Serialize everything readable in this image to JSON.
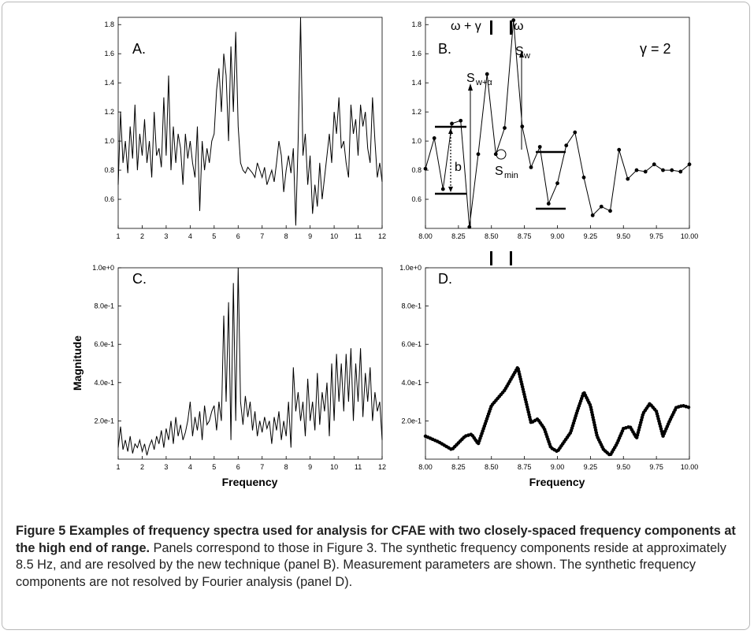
{
  "caption": {
    "label": "Figure 5",
    "title": "Examples of frequency spectra used for analysis for CFAE with two closely-spaced frequency components at the high end of range.",
    "body": "Panels correspond to those in Figure 3. The synthetic frequency components reside at approximately 8.5 Hz, and are resolved by the new technique (panel B). Measurement parameters are shown. The synthetic frequency components are not resolved by Fourier analysis (panel D)."
  },
  "chart_data": [
    {
      "panel": "A.",
      "type": "line",
      "xlim": [
        1,
        12
      ],
      "ylim": [
        0.4,
        1.85
      ],
      "xticks": [
        "1",
        "2",
        "3",
        "4",
        "5",
        "6",
        "7",
        "8",
        "9",
        "10",
        "11",
        "12"
      ],
      "yticks": [
        "0.6",
        "0.8",
        "1.0",
        "1.2",
        "1.4",
        "1.6",
        "1.8"
      ],
      "xlabel": "",
      "ylabel": "",
      "series": [
        {
          "x": [
            1.0,
            1.1,
            1.2,
            1.3,
            1.4,
            1.5,
            1.6,
            1.7,
            1.8,
            1.9,
            2.0,
            2.1,
            2.2,
            2.3,
            2.4,
            2.5,
            2.6,
            2.7,
            2.8,
            2.9,
            3.0,
            3.1,
            3.2,
            3.3,
            3.4,
            3.5,
            3.6,
            3.7,
            3.8,
            3.9,
            4.0,
            4.1,
            4.2,
            4.3,
            4.4,
            4.5,
            4.6,
            4.7,
            4.8,
            4.9,
            5.0,
            5.1,
            5.2,
            5.3,
            5.4,
            5.5,
            5.6,
            5.7,
            5.8,
            5.9,
            6.0,
            6.1,
            6.2,
            6.3,
            6.4,
            6.5,
            6.6,
            6.7,
            6.8,
            6.9,
            7.0,
            7.1,
            7.2,
            7.3,
            7.4,
            7.5,
            7.6,
            7.7,
            7.8,
            7.9,
            8.0,
            8.1,
            8.2,
            8.3,
            8.4,
            8.5,
            8.6,
            8.7,
            8.8,
            8.9,
            9.0,
            9.1,
            9.2,
            9.3,
            9.4,
            9.5,
            9.6,
            9.7,
            9.8,
            9.9,
            10.0,
            10.1,
            10.2,
            10.3,
            10.4,
            10.5,
            10.6,
            10.7,
            10.8,
            10.9,
            11.0,
            11.1,
            11.2,
            11.3,
            11.4,
            11.5,
            11.6,
            11.7,
            11.8,
            11.9,
            12.0
          ],
          "values": [
            0.7,
            1.2,
            0.85,
            1.0,
            0.78,
            1.1,
            0.88,
            1.25,
            0.8,
            1.05,
            0.9,
            1.15,
            0.85,
            1.0,
            0.75,
            1.2,
            0.9,
            0.95,
            0.82,
            1.3,
            0.9,
            1.45,
            0.8,
            1.1,
            0.85,
            1.05,
            0.95,
            0.7,
            1.05,
            0.88,
            1.0,
            0.85,
            0.75,
            1.1,
            0.52,
            1.0,
            0.8,
            0.95,
            0.85,
            1.0,
            1.05,
            1.35,
            1.5,
            1.2,
            1.6,
            1.45,
            1.0,
            1.65,
            1.2,
            1.75,
            1.1,
            0.85,
            0.8,
            0.78,
            0.82,
            0.8,
            0.78,
            0.75,
            0.85,
            0.8,
            0.75,
            0.82,
            0.7,
            0.75,
            0.8,
            0.72,
            0.85,
            1.0,
            0.9,
            0.65,
            0.8,
            0.9,
            0.78,
            0.95,
            0.42,
            1.0,
            1.85,
            0.9,
            1.05,
            0.7,
            0.9,
            0.5,
            0.7,
            0.55,
            0.85,
            0.6,
            0.75,
            0.9,
            1.05,
            0.85,
            1.2,
            1.05,
            1.3,
            0.95,
            1.0,
            0.85,
            0.75,
            1.25,
            1.05,
            1.15,
            0.9,
            1.25,
            1.1,
            1.2,
            0.95,
            0.85,
            1.3,
            1.0,
            0.75,
            0.85,
            0.72
          ]
        }
      ]
    },
    {
      "panel": "B.",
      "type": "line",
      "xlim": [
        8,
        10
      ],
      "ylim": [
        0.4,
        1.85
      ],
      "xticks": [
        "8.00",
        "8.25",
        "8.50",
        "8.75",
        "9.00",
        "9.25",
        "9.50",
        "9.75",
        "10.00"
      ],
      "yticks": [
        "0.6",
        "0.8",
        "1.0",
        "1.2",
        "1.4",
        "1.6",
        "1.8"
      ],
      "xlabel": "",
      "ylabel": "",
      "series": [
        {
          "x": [
            8.0,
            8.067,
            8.133,
            8.2,
            8.267,
            8.333,
            8.4,
            8.467,
            8.533,
            8.6,
            8.667,
            8.733,
            8.8,
            8.867,
            8.933,
            9.0,
            9.067,
            9.133,
            9.2,
            9.267,
            9.333,
            9.4,
            9.467,
            9.533,
            9.6,
            9.667,
            9.733,
            9.8,
            9.867,
            9.933,
            10.0
          ],
          "values": [
            0.81,
            1.02,
            0.67,
            1.12,
            1.14,
            0.41,
            0.91,
            1.46,
            0.91,
            1.09,
            1.83,
            1.1,
            0.82,
            0.96,
            0.57,
            0.71,
            0.97,
            1.06,
            0.75,
            0.49,
            0.55,
            0.52,
            0.94,
            0.74,
            0.8,
            0.79,
            0.84,
            0.8,
            0.8,
            0.79,
            0.84
          ]
        }
      ],
      "annotations": [
        "ω + γ",
        "ω",
        "γ = 2",
        "S",
        "w+α",
        "S",
        "w",
        "b",
        "S",
        "min"
      ]
    },
    {
      "panel": "C.",
      "type": "line",
      "xlim": [
        1,
        12
      ],
      "ylim": [
        0,
        1.0
      ],
      "xticks": [
        "1",
        "2",
        "3",
        "4",
        "5",
        "6",
        "7",
        "8",
        "9",
        "10",
        "11",
        "12"
      ],
      "yticks": [
        "2.0e-1",
        "4.0e-1",
        "6.0e-1",
        "8.0e-1",
        "1.0e+0"
      ],
      "xlabel": "Frequency",
      "ylabel": "Magnitude",
      "series": [
        {
          "x": [
            1.0,
            1.1,
            1.2,
            1.3,
            1.4,
            1.5,
            1.6,
            1.7,
            1.8,
            1.9,
            2.0,
            2.1,
            2.2,
            2.3,
            2.4,
            2.5,
            2.6,
            2.7,
            2.8,
            2.9,
            3.0,
            3.1,
            3.2,
            3.3,
            3.4,
            3.5,
            3.6,
            3.7,
            3.8,
            3.9,
            4.0,
            4.1,
            4.2,
            4.3,
            4.4,
            4.5,
            4.6,
            4.7,
            4.8,
            4.9,
            5.0,
            5.1,
            5.2,
            5.3,
            5.4,
            5.5,
            5.6,
            5.7,
            5.8,
            5.9,
            6.0,
            6.1,
            6.2,
            6.3,
            6.4,
            6.5,
            6.6,
            6.7,
            6.8,
            6.9,
            7.0,
            7.1,
            7.2,
            7.3,
            7.4,
            7.5,
            7.6,
            7.7,
            7.8,
            7.9,
            8.0,
            8.1,
            8.2,
            8.3,
            8.4,
            8.5,
            8.6,
            8.7,
            8.8,
            8.9,
            9.0,
            9.1,
            9.2,
            9.3,
            9.4,
            9.5,
            9.6,
            9.7,
            9.8,
            9.9,
            10.0,
            10.1,
            10.2,
            10.3,
            10.4,
            10.5,
            10.6,
            10.7,
            10.8,
            10.9,
            11.0,
            11.1,
            11.2,
            11.3,
            11.4,
            11.5,
            11.6,
            11.7,
            11.8,
            11.9,
            12.0
          ],
          "values": [
            0.06,
            0.17,
            0.05,
            0.1,
            0.04,
            0.12,
            0.03,
            0.08,
            0.06,
            0.1,
            0.04,
            0.08,
            0.02,
            0.07,
            0.1,
            0.05,
            0.12,
            0.08,
            0.15,
            0.06,
            0.16,
            0.1,
            0.2,
            0.08,
            0.22,
            0.12,
            0.18,
            0.1,
            0.14,
            0.2,
            0.3,
            0.12,
            0.22,
            0.15,
            0.25,
            0.1,
            0.28,
            0.18,
            0.2,
            0.25,
            0.28,
            0.15,
            0.3,
            0.2,
            0.75,
            0.3,
            0.82,
            0.1,
            0.92,
            0.2,
            1.0,
            0.3,
            0.18,
            0.33,
            0.22,
            0.3,
            0.15,
            0.25,
            0.12,
            0.2,
            0.14,
            0.22,
            0.16,
            0.2,
            0.08,
            0.22,
            0.15,
            0.25,
            0.1,
            0.2,
            0.12,
            0.3,
            0.06,
            0.48,
            0.25,
            0.35,
            0.2,
            0.3,
            0.12,
            0.42,
            0.2,
            0.3,
            0.15,
            0.45,
            0.18,
            0.35,
            0.25,
            0.4,
            0.12,
            0.5,
            0.2,
            0.55,
            0.3,
            0.5,
            0.25,
            0.55,
            0.3,
            0.58,
            0.2,
            0.5,
            0.3,
            0.58,
            0.22,
            0.45,
            0.3,
            0.48,
            0.2,
            0.35,
            0.25,
            0.3,
            0.1
          ]
        }
      ]
    },
    {
      "panel": "D.",
      "type": "line",
      "xlim": [
        8,
        10
      ],
      "ylim": [
        0,
        1.0
      ],
      "xticks": [
        "8.00",
        "8.25",
        "8.50",
        "8.75",
        "9.00",
        "9.25",
        "9.50",
        "9.75",
        "10.00"
      ],
      "yticks": [
        "2.0e-1",
        "4.0e-1",
        "6.0e-1",
        "8.0e-1",
        "1.0e+0"
      ],
      "xlabel": "Frequency",
      "ylabel": "",
      "series": [
        {
          "x": [
            8.0,
            8.1,
            8.2,
            8.3,
            8.35,
            8.4,
            8.5,
            8.6,
            8.7,
            8.8,
            8.85,
            8.9,
            8.95,
            9.0,
            9.05,
            9.1,
            9.15,
            9.2,
            9.25,
            9.3,
            9.35,
            9.4,
            9.45,
            9.5,
            9.55,
            9.6,
            9.65,
            9.7,
            9.75,
            9.8,
            9.85,
            9.9,
            9.95,
            10.0
          ],
          "values": [
            0.12,
            0.09,
            0.05,
            0.12,
            0.13,
            0.08,
            0.28,
            0.36,
            0.48,
            0.19,
            0.21,
            0.16,
            0.06,
            0.04,
            0.09,
            0.14,
            0.25,
            0.35,
            0.28,
            0.12,
            0.05,
            0.02,
            0.08,
            0.16,
            0.17,
            0.11,
            0.24,
            0.29,
            0.25,
            0.12,
            0.2,
            0.27,
            0.28,
            0.27
          ]
        }
      ]
    }
  ]
}
